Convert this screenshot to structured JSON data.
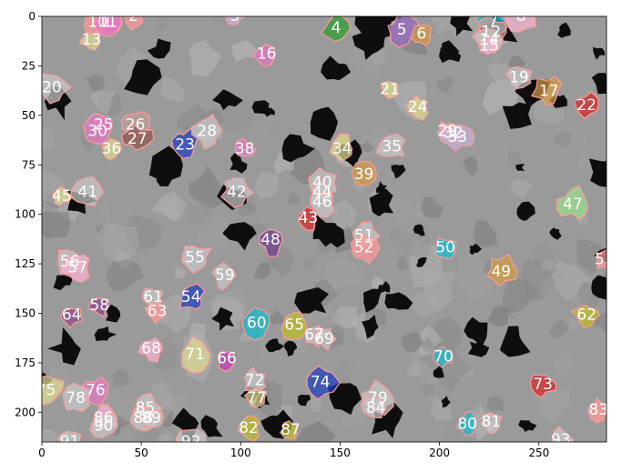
{
  "chart_data": {
    "type": "image",
    "title": "",
    "xlabel": "",
    "ylabel": "",
    "xlim": [
      0,
      284
    ],
    "ylim": [
      215,
      0
    ],
    "xticks": [
      0,
      50,
      100,
      150,
      200,
      250
    ],
    "yticks": [
      0,
      25,
      50,
      75,
      100,
      125,
      150,
      175,
      200
    ],
    "background_color": "#9a9a9a",
    "pore_color": "#0e0e0e",
    "segments": [
      {
        "label": "1",
        "x": 33,
        "y": 3,
        "color": "#e377c2"
      },
      {
        "label": "2",
        "x": 46,
        "y": 0,
        "color": "#ff9896"
      },
      {
        "label": "3",
        "x": 97,
        "y": 0,
        "color": "#c5b0d5"
      },
      {
        "label": "4",
        "x": 148,
        "y": 6,
        "color": "#2ca02c"
      },
      {
        "label": "5",
        "x": 181,
        "y": 7,
        "color": "#9467bd"
      },
      {
        "label": "6",
        "x": 191,
        "y": 9,
        "color": "#d19a42"
      },
      {
        "label": "7",
        "x": 227,
        "y": 3,
        "color": "#17becf"
      },
      {
        "label": "8",
        "x": 241,
        "y": 0,
        "color": "#f7b6d2"
      },
      {
        "label": "10",
        "x": 28,
        "y": 3,
        "color": "#ff9896"
      },
      {
        "label": "11",
        "x": 33,
        "y": 3,
        "color": "#e377c2"
      },
      {
        "label": "12",
        "x": 226,
        "y": 8,
        "color": "#c49c94"
      },
      {
        "label": "13",
        "x": 25,
        "y": 12,
        "color": "#dbdb8d"
      },
      {
        "label": "14",
        "x": 225,
        "y": 12,
        "color": "#c7c7c7"
      },
      {
        "label": "15",
        "x": 225,
        "y": 15,
        "color": "#f7b6d2"
      },
      {
        "label": "16",
        "x": 113,
        "y": 19,
        "color": "#e377c2"
      },
      {
        "label": "17",
        "x": 255,
        "y": 38,
        "color": "#d19a42"
      },
      {
        "label": "19",
        "x": 240,
        "y": 31,
        "color": "#c7c7c7"
      },
      {
        "label": "20",
        "x": 5,
        "y": 36,
        "color": "#c7c7c7"
      },
      {
        "label": "21",
        "x": 175,
        "y": 37,
        "color": "#dbdb8d"
      },
      {
        "label": "22",
        "x": 274,
        "y": 45,
        "color": "#d62728"
      },
      {
        "label": "23",
        "x": 72,
        "y": 65,
        "color": "#1f3fbf"
      },
      {
        "label": "24",
        "x": 189,
        "y": 46,
        "color": "#dbdb8d"
      },
      {
        "label": "25",
        "x": 31,
        "y": 55,
        "color": "#e377c2"
      },
      {
        "label": "26",
        "x": 47,
        "y": 55,
        "color": "#c49c94"
      },
      {
        "label": "27",
        "x": 48,
        "y": 62,
        "color": "#8c564b"
      },
      {
        "label": "28",
        "x": 83,
        "y": 58,
        "color": "#c7c7c7"
      },
      {
        "label": "29",
        "x": 204,
        "y": 58,
        "color": "#f7b6d2"
      },
      {
        "label": "30",
        "x": 28,
        "y": 58,
        "color": "#e377c2"
      },
      {
        "label": "32",
        "x": 207,
        "y": 59,
        "color": "#c7c7c7"
      },
      {
        "label": "33",
        "x": 209,
        "y": 61,
        "color": "#c5b0d5"
      },
      {
        "label": "34",
        "x": 151,
        "y": 67,
        "color": "#dbdb8d"
      },
      {
        "label": "35",
        "x": 176,
        "y": 66,
        "color": "#c7c7c7"
      },
      {
        "label": "36",
        "x": 35,
        "y": 67,
        "color": "#dbdb8d"
      },
      {
        "label": "38",
        "x": 102,
        "y": 67,
        "color": "#e377c2"
      },
      {
        "label": "39",
        "x": 162,
        "y": 80,
        "color": "#d19a42"
      },
      {
        "label": "40",
        "x": 141,
        "y": 84,
        "color": "#c7c7c7"
      },
      {
        "label": "41",
        "x": 23,
        "y": 89,
        "color": "#c7c7c7"
      },
      {
        "label": "42",
        "x": 98,
        "y": 89,
        "color": "#c7c7c7"
      },
      {
        "label": "43",
        "x": 134,
        "y": 102,
        "color": "#d62728"
      },
      {
        "label": "44",
        "x": 141,
        "y": 89,
        "color": "#c7c7c7"
      },
      {
        "label": "45",
        "x": 10,
        "y": 91,
        "color": "#dbdb8d"
      },
      {
        "label": "46",
        "x": 141,
        "y": 94,
        "color": "#c7c7c7"
      },
      {
        "label": "47",
        "x": 267,
        "y": 95,
        "color": "#98df8a"
      },
      {
        "label": "48",
        "x": 115,
        "y": 113,
        "color": "#6f3d8c"
      },
      {
        "label": "49",
        "x": 231,
        "y": 129,
        "color": "#d19a42"
      },
      {
        "label": "50",
        "x": 203,
        "y": 117,
        "color": "#17becf"
      },
      {
        "label": "51",
        "x": 162,
        "y": 111,
        "color": "#c7c7c7"
      },
      {
        "label": "52",
        "x": 162,
        "y": 117,
        "color": "#ff9896"
      },
      {
        "label": "53",
        "x": 283,
        "y": 123,
        "color": "#ff9896"
      },
      {
        "label": "54",
        "x": 75,
        "y": 142,
        "color": "#1f3fbf"
      },
      {
        "label": "55",
        "x": 77,
        "y": 122,
        "color": "#c7c7c7"
      },
      {
        "label": "56",
        "x": 14,
        "y": 124,
        "color": "#c7c7c7"
      },
      {
        "label": "57",
        "x": 18,
        "y": 127,
        "color": "#f7b6d2"
      },
      {
        "label": "58",
        "x": 29,
        "y": 146,
        "color": "#8c4b8c"
      },
      {
        "label": "59",
        "x": 92,
        "y": 131,
        "color": "#c7c7c7"
      },
      {
        "label": "60",
        "x": 108,
        "y": 155,
        "color": "#17becf"
      },
      {
        "label": "61",
        "x": 56,
        "y": 142,
        "color": "#c7c7c7"
      },
      {
        "label": "62",
        "x": 274,
        "y": 151,
        "color": "#bcbd22"
      },
      {
        "label": "63",
        "x": 58,
        "y": 149,
        "color": "#ff9896"
      },
      {
        "label": "64",
        "x": 15,
        "y": 151,
        "color": "#8c4b8c"
      },
      {
        "label": "65",
        "x": 127,
        "y": 156,
        "color": "#bcbd22"
      },
      {
        "label": "66",
        "x": 93,
        "y": 173,
        "color": "#c13cc1"
      },
      {
        "label": "67",
        "x": 137,
        "y": 161,
        "color": "#c7c7c7"
      },
      {
        "label": "68",
        "x": 55,
        "y": 168,
        "color": "#f7b6d2"
      },
      {
        "label": "69",
        "x": 142,
        "y": 163,
        "color": "#c7c7c7"
      },
      {
        "label": "70",
        "x": 202,
        "y": 172,
        "color": "#17becf"
      },
      {
        "label": "71",
        "x": 77,
        "y": 171,
        "color": "#dbdb8d"
      },
      {
        "label": "72",
        "x": 107,
        "y": 184,
        "color": "#c7c7c7"
      },
      {
        "label": "73",
        "x": 252,
        "y": 186,
        "color": "#d62728"
      },
      {
        "label": "74",
        "x": 140,
        "y": 185,
        "color": "#1f3fbf"
      },
      {
        "label": "75",
        "x": 2,
        "y": 189,
        "color": "#dbdb8d"
      },
      {
        "label": "76",
        "x": 27,
        "y": 189,
        "color": "#e377c2"
      },
      {
        "label": "77",
        "x": 108,
        "y": 193,
        "color": "#dbdb8d"
      },
      {
        "label": "78",
        "x": 17,
        "y": 193,
        "color": "#c7c7c7"
      },
      {
        "label": "79",
        "x": 169,
        "y": 193,
        "color": "#c7c7c7"
      },
      {
        "label": "80",
        "x": 214,
        "y": 206,
        "color": "#17becf"
      },
      {
        "label": "81",
        "x": 226,
        "y": 205,
        "color": "#c7c7c7"
      },
      {
        "label": "82",
        "x": 104,
        "y": 208,
        "color": "#bcbd22"
      },
      {
        "label": "83",
        "x": 280,
        "y": 199,
        "color": "#ff9896"
      },
      {
        "label": "84",
        "x": 168,
        "y": 198,
        "color": "#c7c7c7"
      },
      {
        "label": "85",
        "x": 52,
        "y": 198,
        "color": "#c7c7c7"
      },
      {
        "label": "86",
        "x": 31,
        "y": 203,
        "color": "#f7b6d2"
      },
      {
        "label": "87",
        "x": 125,
        "y": 209,
        "color": "#bcbd22"
      },
      {
        "label": "88",
        "x": 51,
        "y": 203,
        "color": "#c7c7c7"
      },
      {
        "label": "89",
        "x": 55,
        "y": 203,
        "color": "#c7c7c7"
      },
      {
        "label": "90",
        "x": 31,
        "y": 207,
        "color": "#c7c7c7"
      },
      {
        "label": "91",
        "x": 14,
        "y": 215,
        "color": "#c7c7c7"
      },
      {
        "label": "92",
        "x": 75,
        "y": 215,
        "color": "#c7c7c7"
      },
      {
        "label": "93",
        "x": 261,
        "y": 214,
        "color": "#c7c7c7"
      }
    ]
  }
}
